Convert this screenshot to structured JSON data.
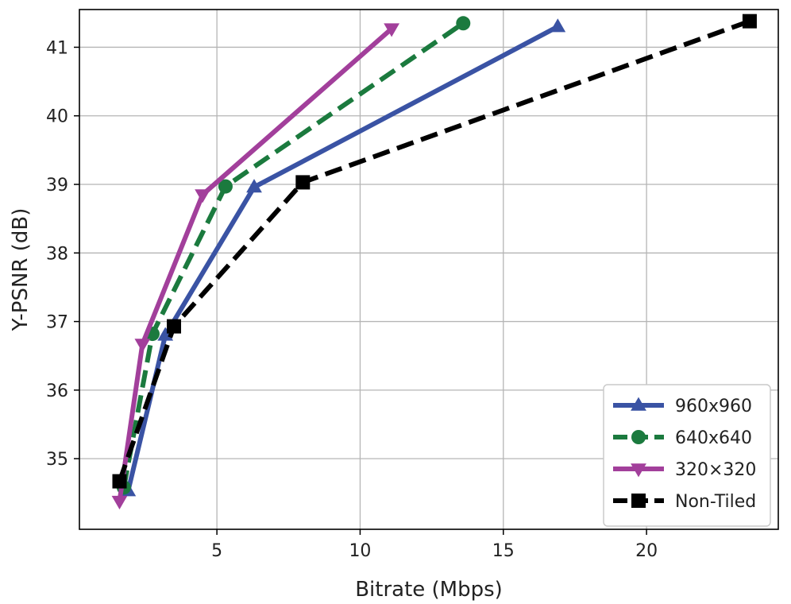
{
  "chart_data": {
    "type": "line",
    "title": "",
    "xlabel": "Bitrate (Mbps)",
    "ylabel": "Y-PSNR (dB)",
    "xlim": [
      0.2,
      24.6
    ],
    "ylim": [
      33.97,
      41.55
    ],
    "xticks": [
      5,
      10,
      15,
      20
    ],
    "yticks": [
      35,
      36,
      37,
      38,
      39,
      40,
      41
    ],
    "grid": true,
    "legend_position": "bottom-right",
    "series": [
      {
        "name": "960x960",
        "color": "#3a53a4",
        "line_style": "solid",
        "marker": "triangle-up",
        "points": [
          [
            1.9,
            34.53
          ],
          [
            3.2,
            36.8
          ],
          [
            6.3,
            38.96
          ],
          [
            16.9,
            41.3
          ]
        ]
      },
      {
        "name": "640x640",
        "color": "#1b7a3e",
        "line_style": "dashed",
        "marker": "circle",
        "points": [
          [
            1.75,
            34.58
          ],
          [
            2.75,
            36.82
          ],
          [
            5.3,
            38.97
          ],
          [
            13.6,
            41.35
          ]
        ]
      },
      {
        "name": "320×320",
        "color": "#a23f9b",
        "line_style": "solid",
        "marker": "triangle-down",
        "points": [
          [
            1.6,
            34.38
          ],
          [
            2.4,
            36.67
          ],
          [
            4.5,
            38.85
          ],
          [
            11.1,
            41.27
          ]
        ]
      },
      {
        "name": "Non-Tiled",
        "color": "#000000",
        "line_style": "dashed",
        "marker": "square",
        "points": [
          [
            1.6,
            34.67
          ],
          [
            3.5,
            36.93
          ],
          [
            8.0,
            39.03
          ],
          [
            23.6,
            41.38
          ]
        ]
      }
    ]
  }
}
